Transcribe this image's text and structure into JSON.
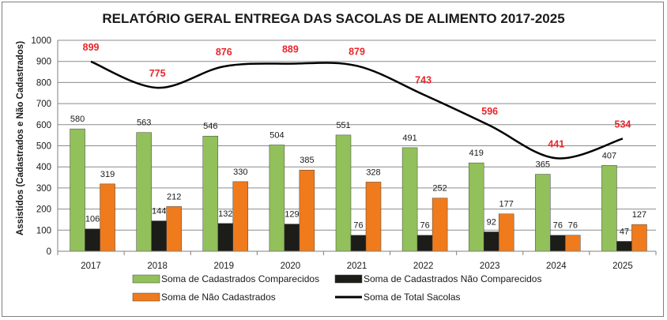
{
  "chart_data": {
    "type": "bar+line",
    "title": "RELATÓRIO GERAL ENTREGA DAS SACOLAS DE ALIMENTO 2017-2025",
    "ylabel": "Assistidos (Cadastrados e Não Cadastrados)",
    "xlabel": "",
    "ylim": [
      0,
      1000
    ],
    "yticks": [
      0,
      100,
      200,
      300,
      400,
      500,
      600,
      700,
      800,
      900,
      1000
    ],
    "grid": true,
    "categories": [
      "2017",
      "2018",
      "2019",
      "2020",
      "2021",
      "2022",
      "2023",
      "2024",
      "2025"
    ],
    "series": [
      {
        "name": "Soma de Cadastrados Comparecidos",
        "kind": "bar",
        "color": "#92c05a",
        "values": [
          580,
          563,
          546,
          504,
          551,
          491,
          419,
          365,
          407
        ]
      },
      {
        "name": "Soma de Cadastrados Não Comparecidos",
        "kind": "bar",
        "color": "#1c1c18",
        "values": [
          106,
          144,
          132,
          129,
          76,
          76,
          92,
          76,
          47
        ]
      },
      {
        "name": "Soma de Não Cadastrados",
        "kind": "bar",
        "color": "#f07b1c",
        "values": [
          319,
          212,
          330,
          385,
          328,
          252,
          177,
          76,
          127
        ]
      },
      {
        "name": "Soma de Total Sacolas",
        "kind": "line",
        "color": "#000000",
        "label_color": "#e8262b",
        "values": [
          899,
          775,
          876,
          889,
          879,
          743,
          596,
          441,
          534
        ]
      }
    ],
    "legend_position": "bottom"
  }
}
